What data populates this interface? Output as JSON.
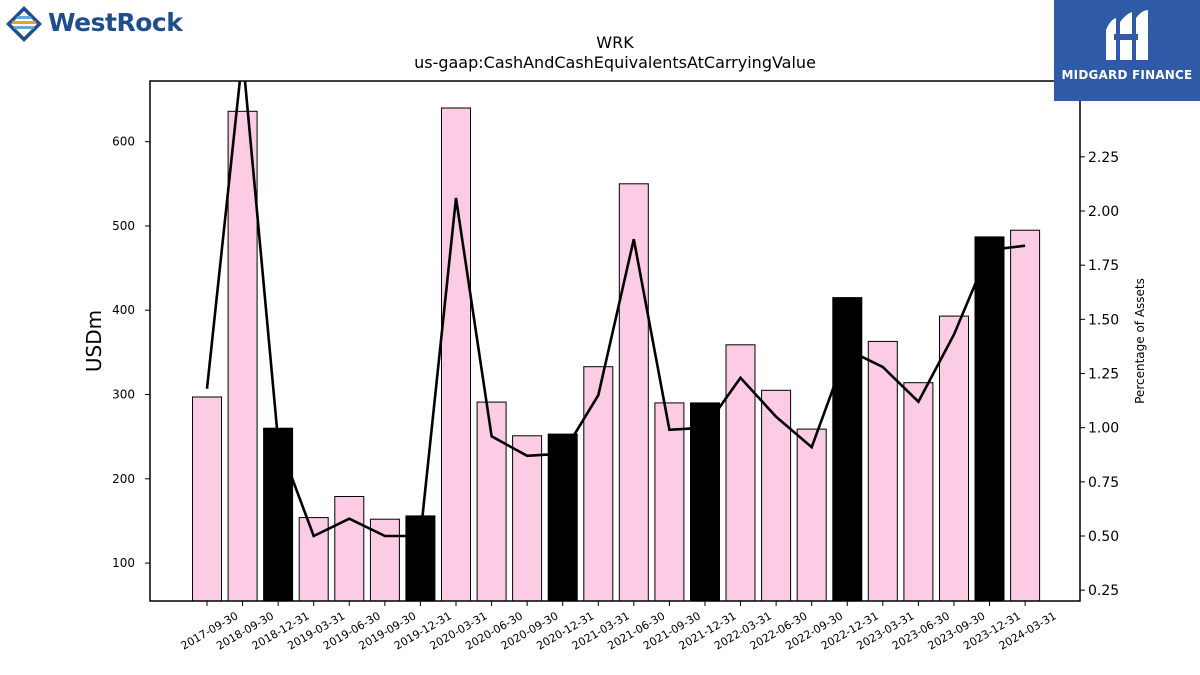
{
  "brand_left": {
    "name": "WestRock",
    "color": "#1f4e8c"
  },
  "brand_right": {
    "name": "MIDGARD FINANCE",
    "bg_color": "#2e5aa8"
  },
  "chart_data": {
    "type": "bar",
    "title": "WRK",
    "subtitle": "us-gaap:CashAndCashEquivalentsAtCarryingValue",
    "ylabel": "USDm",
    "y2label": "Percentage of Assets",
    "ylim": [
      55,
      672
    ],
    "y2lim": [
      0.2,
      2.6
    ],
    "yticks": [
      100,
      200,
      300,
      400,
      500,
      600
    ],
    "y2ticks": [
      "0.25",
      "0.50",
      "0.75",
      "1.00",
      "1.25",
      "1.50",
      "1.75",
      "2.00",
      "2.25"
    ],
    "bar_colors": {
      "pink": "#fccce4",
      "black": "#000000"
    },
    "categories": [
      "2017-09-30",
      "2018-09-30",
      "2018-12-31",
      "2019-03-31",
      "2019-06-30",
      "2019-09-30",
      "2019-12-31",
      "2020-03-31",
      "2020-06-30",
      "2020-09-30",
      "2020-12-31",
      "2021-03-31",
      "2021-06-30",
      "2021-09-30",
      "2021-12-31",
      "2022-03-31",
      "2022-06-30",
      "2022-09-30",
      "2022-12-31",
      "2023-03-31",
      "2023-06-30",
      "2023-09-30",
      "2023-12-31",
      "2024-03-31"
    ],
    "bar_color_keys": [
      "pink",
      "pink",
      "black",
      "pink",
      "pink",
      "pink",
      "black",
      "pink",
      "pink",
      "pink",
      "black",
      "pink",
      "pink",
      "pink",
      "black",
      "pink",
      "pink",
      "pink",
      "black",
      "pink",
      "pink",
      "pink",
      "black",
      "pink"
    ],
    "series": [
      {
        "kind": "bar",
        "axis": "left",
        "values": [
          297,
          636,
          260,
          154,
          179,
          152,
          156,
          640,
          291,
          251,
          253,
          333,
          550,
          290,
          290,
          359,
          305,
          259,
          415,
          363,
          314,
          393,
          487,
          495
        ]
      },
      {
        "kind": "line",
        "axis": "right",
        "values": [
          1.18,
          2.72,
          0.94,
          0.5,
          0.58,
          0.5,
          0.5,
          2.06,
          0.96,
          0.87,
          0.88,
          1.15,
          1.87,
          0.99,
          1.0,
          1.23,
          1.05,
          0.91,
          1.36,
          1.28,
          1.12,
          1.43,
          1.82,
          1.84
        ]
      }
    ]
  }
}
